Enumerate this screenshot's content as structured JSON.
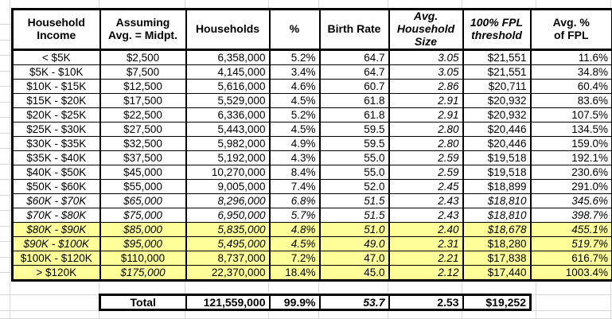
{
  "colors": {
    "highlight": "#FFFF99",
    "border": "#000000",
    "gridline": "#D8D8D8",
    "text": "#000000",
    "background": "#FFFFFF"
  },
  "table": {
    "headers": [
      {
        "name": "household-income",
        "label": "Household\nIncome",
        "italic": false
      },
      {
        "name": "assuming-midpoint",
        "label": "Assuming\nAvg. = Midpt.",
        "italic": false
      },
      {
        "name": "households",
        "label": "Households",
        "italic": false
      },
      {
        "name": "percent",
        "label": "%",
        "italic": false
      },
      {
        "name": "birth-rate",
        "label": "Birth Rate",
        "italic": false
      },
      {
        "name": "avg-household-size",
        "label": "Avg.\nHousehold\nSize",
        "italic": true
      },
      {
        "name": "fpl-threshold",
        "label": "100% FPL\nthreshold",
        "italic": true
      },
      {
        "name": "avg-pct-of-fpl",
        "label": "Avg. %\nof FPL",
        "italic": false
      }
    ],
    "rows": [
      {
        "cells": [
          "< $5K",
          "$2,500",
          "6,358,000",
          "5.2%",
          "64.7",
          "3.05",
          "$21,551",
          "11.6%"
        ],
        "italic": [
          0,
          0,
          0,
          0,
          0,
          1,
          0,
          0
        ],
        "highlight": false
      },
      {
        "cells": [
          "$5K - $10K",
          "$7,500",
          "4,145,000",
          "3.4%",
          "64.7",
          "3.05",
          "$21,551",
          "34.8%"
        ],
        "italic": [
          0,
          0,
          0,
          0,
          0,
          1,
          0,
          0
        ],
        "highlight": false
      },
      {
        "cells": [
          "$10K - $15K",
          "$12,500",
          "5,616,000",
          "4.6%",
          "60.7",
          "2.86",
          "$20,711",
          "60.4%"
        ],
        "italic": [
          0,
          0,
          0,
          0,
          0,
          1,
          0,
          0
        ],
        "highlight": false
      },
      {
        "cells": [
          "$15K - $20K",
          "$17,500",
          "5,529,000",
          "4.5%",
          "61.8",
          "2.91",
          "$20,932",
          "83.6%"
        ],
        "italic": [
          0,
          0,
          0,
          0,
          0,
          1,
          0,
          0
        ],
        "highlight": false
      },
      {
        "cells": [
          "$20K - $25K",
          "$22,500",
          "6,336,000",
          "5.2%",
          "61.8",
          "2.91",
          "$20,932",
          "107.5%"
        ],
        "italic": [
          0,
          0,
          0,
          0,
          0,
          1,
          0,
          0
        ],
        "highlight": false
      },
      {
        "cells": [
          "$25K - $30K",
          "$27,500",
          "5,443,000",
          "4.5%",
          "59.5",
          "2.80",
          "$20,446",
          "134.5%"
        ],
        "italic": [
          0,
          0,
          0,
          0,
          0,
          1,
          0,
          0
        ],
        "highlight": false
      },
      {
        "cells": [
          "$30K - $35K",
          "$32,500",
          "5,982,000",
          "4.9%",
          "59.5",
          "2.80",
          "$20,446",
          "159.0%"
        ],
        "italic": [
          0,
          0,
          0,
          0,
          0,
          1,
          0,
          0
        ],
        "highlight": false
      },
      {
        "cells": [
          "$35K - $40K",
          "$37,500",
          "5,192,000",
          "4.3%",
          "55.0",
          "2.59",
          "$19,518",
          "192.1%"
        ],
        "italic": [
          0,
          0,
          0,
          0,
          0,
          1,
          0,
          0
        ],
        "highlight": false
      },
      {
        "cells": [
          "$40K - $50K",
          "$45,000",
          "10,270,000",
          "8.4%",
          "55.0",
          "2.59",
          "$19,518",
          "230.6%"
        ],
        "italic": [
          0,
          0,
          0,
          0,
          0,
          1,
          0,
          0
        ],
        "highlight": false
      },
      {
        "cells": [
          "$50K - $60K",
          "$55,000",
          "9,005,000",
          "7.4%",
          "52.0",
          "2.45",
          "$18,899",
          "291.0%"
        ],
        "italic": [
          0,
          0,
          0,
          0,
          0,
          1,
          0,
          0
        ],
        "highlight": false
      },
      {
        "cells": [
          "$60K - $70K",
          "$65,000",
          "8,296,000",
          "6.8%",
          "51.5",
          "2.43",
          "$18,810",
          "345.6%"
        ],
        "italic": [
          1,
          1,
          1,
          1,
          1,
          1,
          1,
          1
        ],
        "highlight": false
      },
      {
        "cells": [
          "$70K - $80K",
          "$75,000",
          "6,950,000",
          "5.7%",
          "51.5",
          "2.43",
          "$18,810",
          "398.7%"
        ],
        "italic": [
          1,
          1,
          1,
          1,
          1,
          1,
          1,
          1
        ],
        "highlight": false
      },
      {
        "cells": [
          "$80K - $90K",
          "$85,000",
          "5,835,000",
          "4.8%",
          "51.0",
          "2.40",
          "$18,678",
          "455.1%"
        ],
        "italic": [
          1,
          1,
          1,
          1,
          1,
          1,
          1,
          1
        ],
        "highlight": true
      },
      {
        "cells": [
          "$90K - $100K",
          "$95,000",
          "5,495,000",
          "4.5%",
          "49.0",
          "2.31",
          "$18,280",
          "519.7%"
        ],
        "italic": [
          1,
          1,
          1,
          1,
          1,
          1,
          0,
          1
        ],
        "highlight": true
      },
      {
        "cells": [
          "$100K - $120K",
          "$110,000",
          "8,737,000",
          "7.2%",
          "47.0",
          "2.21",
          "$17,838",
          "616.7%"
        ],
        "italic": [
          0,
          0,
          0,
          0,
          0,
          1,
          0,
          0
        ],
        "highlight": true
      },
      {
        "cells": [
          "> $120K",
          "$175,000",
          "22,370,000",
          "18.4%",
          "45.0",
          "2.12",
          "$17,440",
          "1003.4%"
        ],
        "italic": [
          0,
          1,
          0,
          0,
          0,
          1,
          0,
          0
        ],
        "highlight": true
      }
    ],
    "total": {
      "label": "Total",
      "cells": [
        "121,559,000",
        "99.9%",
        "53.7",
        "2.53",
        "$19,252"
      ],
      "italic": [
        0,
        0,
        1,
        0,
        0
      ]
    }
  }
}
